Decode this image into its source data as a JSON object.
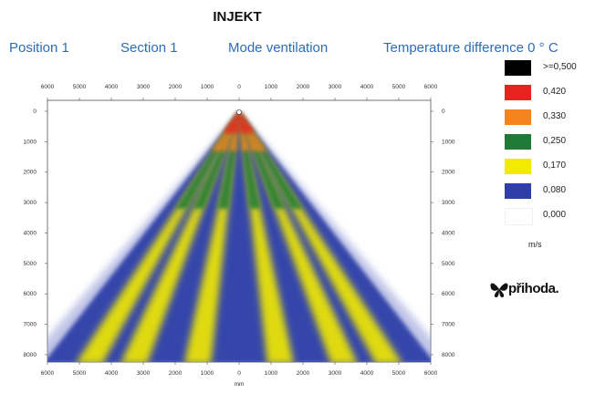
{
  "title": "INJEKT",
  "header": {
    "position": "Position  1",
    "section": "Section  1",
    "mode": "Mode ventilation",
    "temperature": "Temperature difference  0 ° C"
  },
  "legend": {
    "unit": "m/s",
    "items": [
      {
        "label": ">=0,500",
        "color": "#000000"
      },
      {
        "label": "0,420",
        "color": "#e8231f"
      },
      {
        "label": "0,330",
        "color": "#f5841f"
      },
      {
        "label": "0,250",
        "color": "#1e7a36"
      },
      {
        "label": "0,170",
        "color": "#f2ea00"
      },
      {
        "label": "0,080",
        "color": "#2f3fa8"
      },
      {
        "label": "0,000",
        "color": "#ffffff"
      }
    ]
  },
  "brand": {
    "name": "přihoda.",
    "icon": "butterfly-logo-icon"
  },
  "chart_data": {
    "type": "heatmap",
    "title": "INJEKT",
    "xlabel": "mm",
    "ylabel": "",
    "x_ticks": [
      6000,
      5000,
      4000,
      3000,
      2000,
      1000,
      0,
      1000,
      2000,
      3000,
      4000,
      5000,
      6000
    ],
    "y_ticks": [
      0,
      1000,
      2000,
      3000,
      4000,
      5000,
      6000,
      7000,
      8000
    ],
    "xlim": [
      -6000,
      6000
    ],
    "ylim": [
      0,
      8300
    ],
    "description_values": {
      "source_point": [
        0,
        0
      ],
      "spread_half_width_at_8000": 6000,
      "yellow_jets_x_at_8000": [
        -4700,
        -3300,
        -1300,
        1300,
        3300,
        4700
      ]
    }
  }
}
